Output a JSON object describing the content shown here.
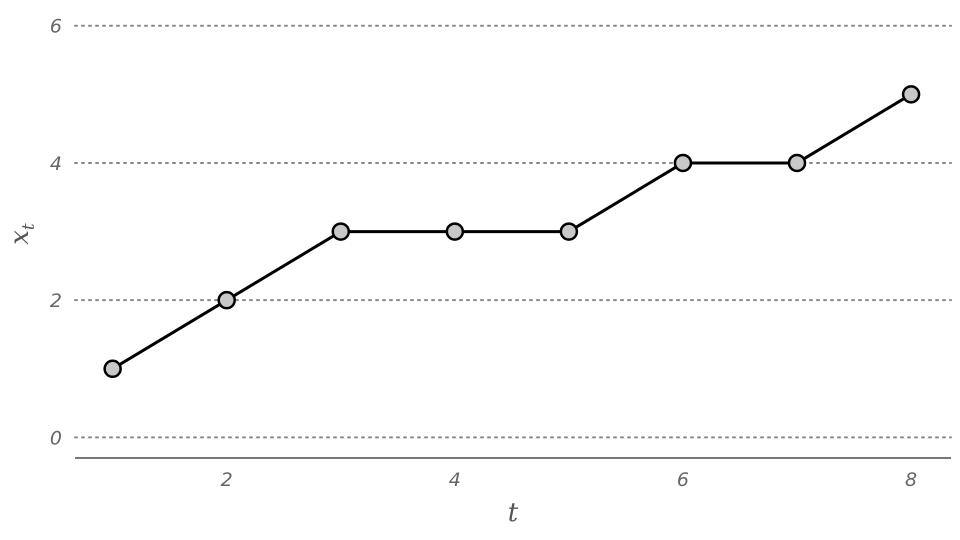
{
  "chart_data": {
    "type": "line",
    "title": "",
    "xlabel": "t",
    "ylabel": {
      "base": "x",
      "subscript": "t"
    },
    "xlim": [
      0.67,
      8.35
    ],
    "ylim": [
      -0.3,
      6.2
    ],
    "x_ticks": [
      "2",
      "4",
      "6",
      "8"
    ],
    "y_ticks": [
      "0",
      "2",
      "4",
      "6"
    ],
    "grid": "horizontal-dotted",
    "series": [
      {
        "x": [
          1,
          2,
          3,
          4,
          5,
          6,
          7,
          8
        ],
        "y": [
          1,
          2,
          3,
          3,
          3,
          4,
          4,
          5
        ]
      }
    ],
    "colors": {
      "line": "#000000",
      "marker_fill": "#c8c8c8",
      "grid": "#888888",
      "axis": "#777777",
      "text": "#666666"
    }
  }
}
